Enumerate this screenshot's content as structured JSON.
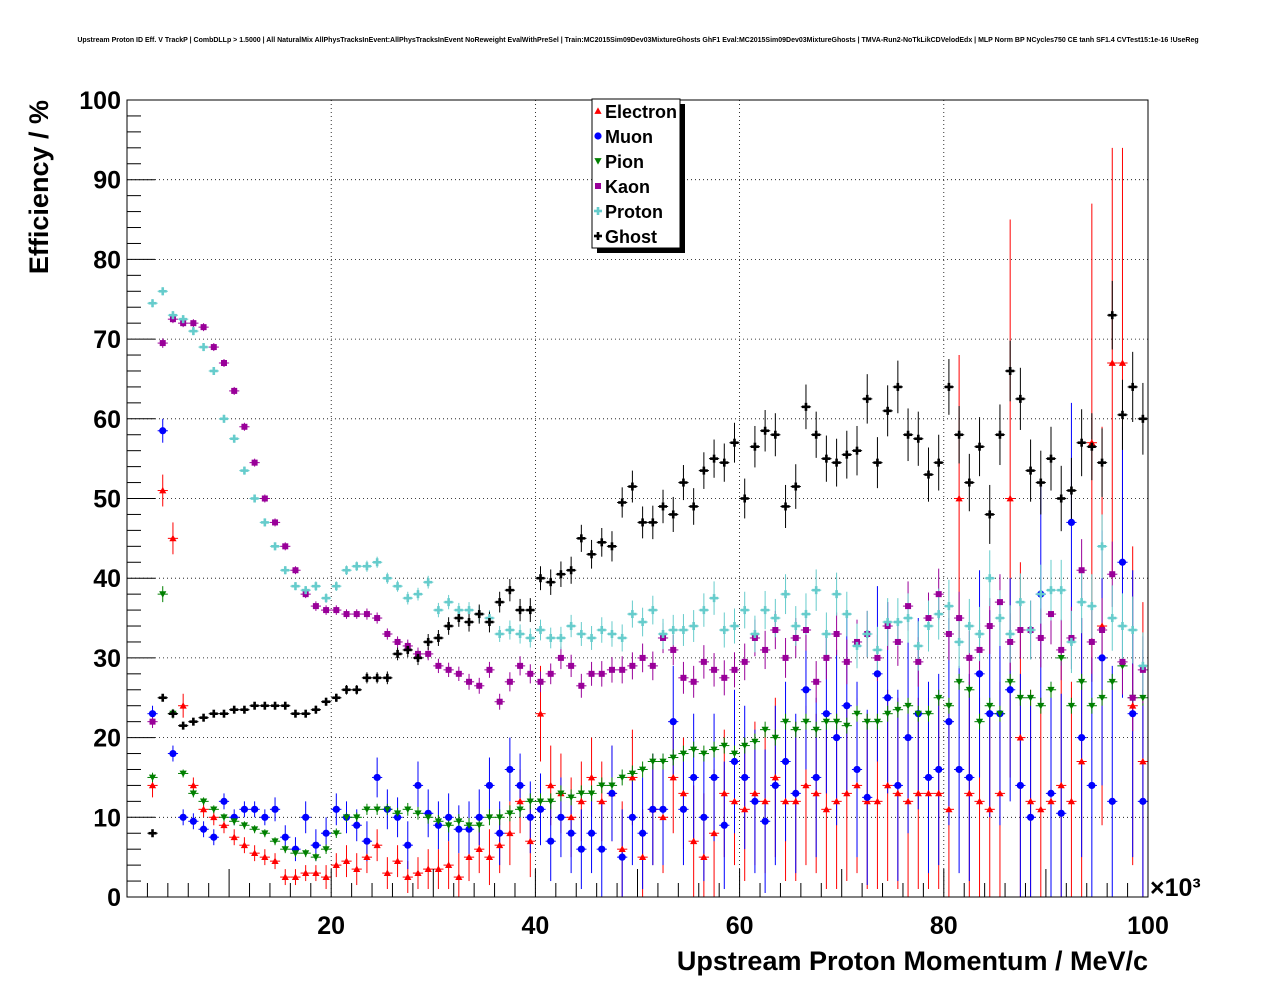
{
  "chart_data": {
    "type": "scatter",
    "title": "Upstream Proton ID Eff. V TrackP | CombDLLp > 1.5000 | All NaturalMix AllPhysTracksInEvent:AllPhysTracksInEvent NoReweight EvalWithPreSel | Train:MC2015Sim09Dev03MixtureGhosts GhF1 Eval:MC2015Sim09Dev03MixtureGhosts | TMVA-Run2-NoTkLikCDVelodEdx | MLP Norm BP NCycles750 CE tanh SF1.4 CVTest15:1e-16 !UseReg",
    "xlabel": "Upstream Proton Momentum / MeV/c",
    "ylabel": "Efficiency / %",
    "x_exponent_label": "×10³",
    "xlim": [
      0,
      100
    ],
    "ylim": [
      0,
      100
    ],
    "x_ticks": [
      "20",
      "40",
      "60",
      "80",
      "100"
    ],
    "y_ticks": [
      "0",
      "10",
      "20",
      "30",
      "40",
      "50",
      "60",
      "70",
      "80",
      "90",
      "100"
    ],
    "grid": true,
    "legend_position": "top-center",
    "x": [
      2.5,
      3.5,
      4.5,
      5.5,
      6.5,
      7.5,
      8.5,
      9.5,
      10.5,
      11.5,
      12.5,
      13.5,
      14.5,
      15.5,
      16.5,
      17.5,
      18.5,
      19.5,
      20.5,
      21.5,
      22.5,
      23.5,
      24.5,
      25.5,
      26.5,
      27.5,
      28.5,
      29.5,
      30.5,
      31.5,
      32.5,
      33.5,
      34.5,
      35.5,
      36.5,
      37.5,
      38.5,
      39.5,
      40.5,
      41.5,
      42.5,
      43.5,
      44.5,
      45.5,
      46.5,
      47.5,
      48.5,
      49.5,
      50.5,
      51.5,
      52.5,
      53.5,
      54.5,
      55.5,
      56.5,
      57.5,
      58.5,
      59.5,
      60.5,
      61.5,
      62.5,
      63.5,
      64.5,
      65.5,
      66.5,
      67.5,
      68.5,
      69.5,
      70.5,
      71.5,
      72.5,
      73.5,
      74.5,
      75.5,
      76.5,
      77.5,
      78.5,
      79.5,
      80.5,
      81.5,
      82.5,
      83.5,
      84.5,
      85.5,
      86.5,
      87.5,
      88.5,
      89.5,
      90.5,
      91.5,
      92.5,
      93.5,
      94.5,
      95.5,
      96.5,
      97.5,
      98.5,
      99.5
    ],
    "series": [
      {
        "name": "Electron",
        "color": "#ff0000",
        "marker": "triangle-up",
        "values": [
          14,
          51,
          45,
          24,
          14,
          11,
          10,
          9,
          7.5,
          6.5,
          5.5,
          5,
          4.5,
          2.5,
          2.5,
          3,
          3,
          2.5,
          4,
          4.5,
          3.5,
          5,
          6.5,
          3,
          4.5,
          2.5,
          3,
          3.5,
          3.5,
          4,
          2.5,
          5,
          6,
          5,
          6.5,
          8,
          12,
          7,
          23,
          14,
          13,
          10,
          12,
          15,
          12,
          13,
          6,
          15,
          5,
          11,
          10,
          15,
          13,
          7,
          5,
          8,
          13,
          12,
          11,
          13,
          12,
          15,
          12,
          12,
          14,
          13,
          11,
          12,
          13,
          14,
          12,
          12,
          14,
          13,
          12,
          13,
          13,
          13,
          11,
          50,
          13,
          12,
          11,
          13,
          50,
          20,
          12,
          11,
          12,
          14,
          12,
          17,
          57,
          34,
          67,
          67,
          24,
          17
        ],
        "errors": [
          1.5,
          2,
          2,
          1.5,
          1,
          1,
          1,
          1,
          1,
          1,
          1,
          1,
          1,
          1,
          1,
          1,
          1,
          1.5,
          1.5,
          2,
          2,
          2,
          2,
          2,
          2,
          2,
          2,
          2.5,
          2.5,
          3,
          3,
          3,
          3,
          3.5,
          3.5,
          4,
          4,
          4.5,
          6,
          5,
          5,
          5,
          5,
          5,
          5,
          6,
          6,
          6,
          6,
          7,
          7,
          7,
          7,
          7,
          8,
          8,
          8,
          8,
          9,
          9,
          9,
          10,
          10,
          10,
          10,
          10,
          10,
          11,
          11,
          11,
          11,
          11,
          12,
          12,
          12,
          12,
          12,
          12,
          13,
          18,
          13,
          13,
          13,
          14,
          35,
          22,
          14,
          14,
          14,
          15,
          15,
          18,
          30,
          25,
          27,
          27,
          20,
          20
        ]
      },
      {
        "name": "Muon",
        "color": "#0000ff",
        "marker": "circle",
        "values": [
          23,
          58.5,
          18,
          10,
          9.5,
          8.5,
          7.5,
          12,
          10,
          11,
          11,
          10,
          11,
          7.5,
          6,
          10,
          6.5,
          8,
          11,
          10,
          9,
          7,
          15,
          11,
          10,
          6.5,
          14,
          10.5,
          9,
          10,
          8.5,
          8.5,
          10,
          14,
          8,
          16,
          14,
          10,
          11,
          7,
          10,
          8,
          6,
          8,
          6,
          13,
          5,
          10,
          8,
          11,
          11,
          22,
          11,
          15,
          10,
          15,
          9,
          17,
          15,
          12,
          9.5,
          14,
          17,
          13,
          26,
          15,
          23,
          20,
          24,
          16,
          12.5,
          28,
          25,
          14,
          20,
          23,
          15,
          16,
          22,
          16,
          15,
          28,
          23,
          23,
          26,
          14,
          10,
          38,
          13,
          10.5,
          47,
          20,
          14,
          30,
          12,
          42,
          23,
          12
        ],
        "errors": [
          1,
          1.5,
          1,
          1,
          1,
          1,
          1,
          1,
          1,
          1,
          1,
          1,
          1.5,
          1.5,
          1.5,
          2,
          2,
          2,
          2,
          2,
          2,
          2.5,
          2.5,
          2.5,
          2.5,
          3,
          3,
          3,
          3,
          3,
          3,
          3.5,
          3.5,
          3.5,
          4,
          4,
          4,
          4.5,
          4.5,
          5,
          5,
          5,
          5,
          5,
          6,
          6,
          6,
          6,
          7,
          7,
          7,
          7,
          7,
          8,
          8,
          8,
          8,
          9,
          9,
          9,
          9,
          10,
          10,
          10,
          10,
          10,
          10,
          11,
          11,
          11,
          11,
          11,
          12,
          12,
          12,
          12,
          12,
          12,
          13,
          13,
          13,
          13,
          13,
          14,
          14,
          14,
          14,
          14,
          14,
          15,
          15,
          15,
          16,
          16,
          17,
          17,
          18,
          19
        ]
      },
      {
        "name": "Pion",
        "color": "#008000",
        "marker": "triangle-down",
        "values": [
          15,
          38,
          23,
          15.5,
          13,
          12,
          11,
          10,
          9.5,
          9,
          8.5,
          8,
          7,
          6,
          5.5,
          5.5,
          5,
          6,
          8,
          10,
          10,
          11,
          11,
          11,
          10.5,
          11,
          10.5,
          10,
          9.5,
          9,
          9.5,
          9,
          9,
          10,
          10,
          10.5,
          11,
          12,
          12,
          12,
          13,
          12.5,
          13,
          13,
          14,
          14,
          15,
          15.5,
          16,
          17,
          17,
          17.5,
          18,
          18.5,
          18,
          18.5,
          19,
          18,
          19,
          19.5,
          21,
          20,
          22,
          21,
          22,
          21,
          22,
          22,
          21.5,
          23,
          22,
          22,
          23,
          23.5,
          24,
          23,
          23,
          25,
          24,
          27,
          26,
          22,
          24,
          23,
          27,
          25,
          25,
          24,
          26,
          30,
          24,
          27,
          24,
          25,
          27,
          29,
          25,
          25
        ],
        "errors": [
          0.6,
          1,
          0.6,
          0.5,
          0.5,
          0.5,
          0.5,
          0.5,
          0.5,
          0.5,
          0.5,
          0.5,
          0.5,
          0.5,
          0.5,
          0.5,
          0.5,
          0.6,
          0.6,
          0.6,
          0.6,
          0.7,
          0.7,
          0.7,
          0.7,
          0.8,
          0.8,
          0.8,
          0.8,
          0.9,
          0.9,
          0.9,
          0.9,
          1,
          1,
          1,
          1,
          1,
          1,
          1,
          1,
          1,
          1,
          1,
          1,
          1,
          1,
          1,
          1,
          1,
          1,
          1,
          1,
          1,
          1,
          1,
          1,
          1,
          1,
          1,
          1,
          1,
          1,
          1,
          1,
          1,
          1,
          1,
          1,
          1,
          1,
          1,
          1,
          1,
          1,
          1,
          1,
          1,
          1,
          1,
          1,
          1,
          1,
          1,
          1,
          1,
          1,
          1,
          1,
          1,
          1,
          1,
          1,
          1,
          1,
          1,
          1,
          1
        ]
      },
      {
        "name": "Kaon",
        "color": "#990099",
        "marker": "square",
        "values": [
          22,
          69.5,
          72.5,
          72,
          72,
          71.5,
          69,
          67,
          63.5,
          59,
          54.5,
          50,
          47,
          44,
          41,
          38,
          36.5,
          36,
          36,
          35.5,
          35.5,
          35.5,
          35,
          33,
          32,
          31.5,
          30.5,
          30.5,
          29,
          28.5,
          28,
          27,
          26.5,
          28.5,
          24.5,
          27,
          29,
          28,
          27,
          28,
          30,
          29,
          26.5,
          28,
          28,
          28.5,
          28.5,
          29,
          30,
          29,
          32.5,
          31,
          27.5,
          27,
          29.5,
          28.5,
          27.5,
          28.5,
          29.5,
          32.5,
          31,
          33.5,
          30,
          32.5,
          33.5,
          27,
          30,
          33,
          29.5,
          32,
          33,
          30,
          34,
          32,
          36.5,
          29.5,
          35,
          38,
          33,
          35,
          30,
          31,
          34,
          37,
          32,
          33.5,
          33.5,
          32.5,
          35.5,
          31,
          32.5,
          41,
          32,
          33.5,
          40.5,
          29.5,
          25,
          28.5
        ],
        "errors": [
          0.8,
          0.6,
          0.5,
          0.5,
          0.5,
          0.5,
          0.5,
          0.5,
          0.5,
          0.5,
          0.5,
          0.5,
          0.5,
          0.5,
          0.5,
          0.5,
          0.6,
          0.6,
          0.6,
          0.6,
          0.6,
          0.7,
          0.7,
          0.7,
          0.7,
          0.8,
          0.8,
          0.8,
          0.9,
          0.9,
          0.9,
          1,
          1,
          1,
          1,
          1.2,
          1.2,
          1.2,
          1.3,
          1.3,
          1.4,
          1.4,
          1.5,
          1.5,
          1.6,
          1.6,
          1.7,
          1.7,
          1.8,
          1.8,
          1.9,
          1.9,
          2,
          2,
          2.1,
          2.1,
          2.2,
          2.2,
          2.3,
          2.3,
          2.4,
          2.4,
          2.5,
          2.5,
          2.6,
          2.6,
          2.7,
          2.7,
          2.8,
          2.8,
          2.9,
          2.9,
          3,
          3,
          3.1,
          3.1,
          3.2,
          3.2,
          3.3,
          3.3,
          3.4,
          3.4,
          3.5,
          3.5,
          3.6,
          3.6,
          3.7,
          3.7,
          3.8,
          3.8,
          3.9,
          3.9,
          4,
          4,
          4.1,
          4.1,
          4.2,
          4.2
        ]
      },
      {
        "name": "Proton",
        "color": "#66cccc",
        "marker": "cross",
        "values": [
          74.5,
          76,
          73,
          72.5,
          71,
          69,
          66,
          60,
          57.5,
          53.5,
          50,
          47,
          44,
          41,
          39,
          38.5,
          39,
          37.5,
          39,
          41,
          41.5,
          41.5,
          42,
          40,
          39,
          37.5,
          38,
          39.5,
          36,
          37,
          36,
          36,
          35.5,
          35,
          33,
          33.5,
          33,
          32.5,
          33.5,
          32.5,
          32.5,
          34,
          33,
          32.5,
          33.5,
          33,
          32.5,
          35.5,
          34.5,
          36,
          33,
          33.5,
          33.5,
          34,
          36,
          37.5,
          33.5,
          34,
          36,
          33,
          36,
          35,
          38,
          34,
          35.5,
          38.5,
          33,
          38,
          35.5,
          31.5,
          33,
          31,
          34.5,
          34.5,
          35,
          31.5,
          34,
          35.5,
          36.5,
          32,
          34,
          33,
          40,
          35,
          33,
          37,
          33.5,
          38,
          38.5,
          38.5,
          32,
          37,
          36.5,
          44,
          35,
          34,
          33.5,
          29
        ],
        "errors": [
          0.5,
          0.5,
          0.5,
          0.5,
          0.5,
          0.5,
          0.5,
          0.5,
          0.5,
          0.5,
          0.5,
          0.5,
          0.5,
          0.5,
          0.5,
          0.5,
          0.6,
          0.6,
          0.6,
          0.6,
          0.6,
          0.7,
          0.7,
          0.7,
          0.7,
          0.8,
          0.8,
          0.8,
          0.9,
          0.9,
          0.9,
          1,
          1,
          1,
          1,
          1.2,
          1.2,
          1.2,
          1.3,
          1.3,
          1.4,
          1.4,
          1.5,
          1.5,
          1.6,
          1.6,
          1.7,
          1.7,
          1.8,
          1.8,
          1.9,
          1.9,
          2,
          2,
          2.1,
          2.1,
          2.2,
          2.2,
          2.3,
          2.3,
          2.4,
          2.4,
          2.5,
          2.5,
          2.6,
          2.6,
          2.7,
          2.7,
          2.8,
          2.8,
          2.9,
          2.9,
          3,
          3,
          3.1,
          3.1,
          3.2,
          3.2,
          3.3,
          3.3,
          3.4,
          3.4,
          3.5,
          3.5,
          3.6,
          3.6,
          3.7,
          3.7,
          3.8,
          3.8,
          3.9,
          3.9,
          4,
          4,
          4.1,
          4.1,
          4.2,
          4.2
        ]
      },
      {
        "name": "Ghost",
        "color": "#000000",
        "marker": "cross",
        "values": [
          8,
          25,
          23,
          21.5,
          22,
          22.5,
          23,
          23,
          23.5,
          23.5,
          24,
          24,
          24,
          24,
          23,
          23,
          23.5,
          24.5,
          25,
          26,
          26,
          27.5,
          27.5,
          27.5,
          30.5,
          31,
          30,
          32,
          32.5,
          34,
          35,
          34.5,
          35.5,
          34.5,
          37,
          38.5,
          36,
          36,
          40,
          39.5,
          40.5,
          41,
          45,
          43,
          44.5,
          44,
          49.5,
          51.5,
          47,
          47,
          49,
          48,
          52,
          49,
          53.5,
          55,
          54.5,
          57,
          50,
          56.5,
          58.5,
          58,
          49,
          51.5,
          61.5,
          58,
          55,
          54.5,
          55.5,
          56,
          62.5,
          54.5,
          61,
          64,
          58,
          57.5,
          53,
          54.5,
          64,
          58,
          52,
          56.5,
          48,
          58,
          66,
          62.5,
          53.5,
          52,
          55,
          50,
          51,
          57,
          56.5,
          54.5,
          73,
          60.5,
          64,
          60
        ],
        "errors": [
          0.3,
          0.3,
          0.3,
          0.3,
          0.3,
          0.3,
          0.3,
          0.3,
          0.3,
          0.3,
          0.3,
          0.3,
          0.3,
          0.4,
          0.4,
          0.4,
          0.5,
          0.5,
          0.5,
          0.6,
          0.6,
          0.7,
          0.7,
          0.8,
          0.8,
          0.9,
          0.9,
          1,
          1,
          1.1,
          1.1,
          1.2,
          1.2,
          1.3,
          1.3,
          1.4,
          1.4,
          1.5,
          1.5,
          1.6,
          1.6,
          1.7,
          1.7,
          1.8,
          1.8,
          1.9,
          1.9,
          2,
          2,
          2.1,
          2.1,
          2.2,
          2.2,
          2.3,
          2.3,
          2.4,
          2.4,
          2.5,
          2.5,
          2.6,
          2.6,
          2.7,
          2.7,
          2.8,
          2.8,
          2.9,
          2.9,
          3,
          3,
          3.1,
          3.1,
          3.2,
          3.2,
          3.3,
          3.3,
          3.4,
          3.4,
          3.5,
          3.5,
          3.6,
          3.6,
          3.7,
          3.7,
          3.8,
          3.8,
          3.9,
          3.9,
          4,
          4,
          4.1,
          4.1,
          4.2,
          4.2,
          4.3,
          4.3,
          4.4,
          4.4,
          4.5
        ]
      }
    ]
  }
}
